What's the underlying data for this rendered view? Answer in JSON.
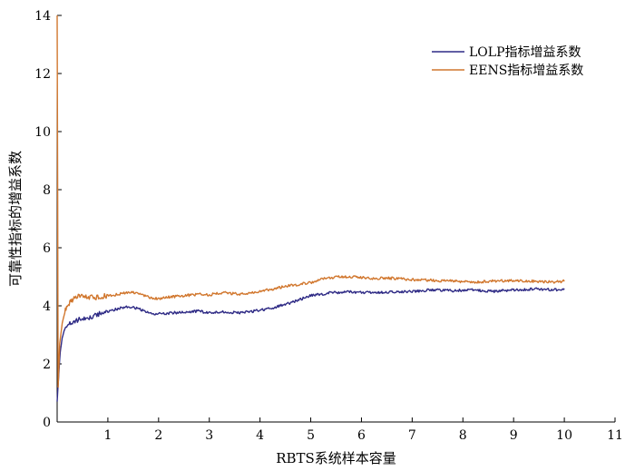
{
  "chart_data": {
    "type": "line",
    "xlabel": "RBTS系统样本容量",
    "ylabel": "可靠性指标的增益系数",
    "xlim": [
      0,
      11
    ],
    "ylim": [
      0,
      14
    ],
    "xticks": [
      1,
      2,
      3,
      4,
      5,
      6,
      7,
      8,
      9,
      10,
      11
    ],
    "yticks": [
      0,
      2,
      4,
      6,
      8,
      10,
      12,
      14
    ],
    "grid": false,
    "legend_position": "top-right",
    "series": [
      {
        "name": "LOLP指标增益系数",
        "color": "#2e2a85",
        "x": [
          0,
          0.03,
          0.06,
          0.1,
          0.15,
          0.2,
          0.3,
          0.4,
          0.5,
          0.6,
          0.7,
          0.8,
          0.9,
          1.0,
          1.2,
          1.4,
          1.6,
          1.8,
          2.0,
          2.2,
          2.5,
          2.8,
          3.0,
          3.3,
          3.6,
          4.0,
          4.3,
          4.6,
          5.0,
          5.4,
          5.8,
          6.2,
          6.6,
          7.0,
          7.4,
          7.8,
          8.2,
          8.6,
          9.0,
          9.4,
          9.8,
          10.0
        ],
        "y": [
          0.7,
          1.6,
          2.4,
          2.9,
          3.2,
          3.35,
          3.4,
          3.5,
          3.55,
          3.6,
          3.62,
          3.7,
          3.75,
          3.8,
          3.9,
          3.98,
          3.9,
          3.75,
          3.72,
          3.75,
          3.78,
          3.82,
          3.75,
          3.8,
          3.75,
          3.85,
          3.95,
          4.1,
          4.35,
          4.45,
          4.48,
          4.45,
          4.48,
          4.5,
          4.55,
          4.52,
          4.55,
          4.5,
          4.55,
          4.58,
          4.55,
          4.58
        ]
      },
      {
        "name": "EENS指标增益系数",
        "color": "#d1772e",
        "x": [
          0,
          0.02,
          0.05,
          0.1,
          0.15,
          0.2,
          0.25,
          0.3,
          0.4,
          0.5,
          0.6,
          0.7,
          0.8,
          0.9,
          1.0,
          1.2,
          1.4,
          1.6,
          1.8,
          2.0,
          2.2,
          2.5,
          2.8,
          3.0,
          3.3,
          3.6,
          4.0,
          4.3,
          4.6,
          5.0,
          5.3,
          5.6,
          5.9,
          6.2,
          6.6,
          7.0,
          7.4,
          7.8,
          8.2,
          8.6,
          9.0,
          9.4,
          9.8,
          10.0
        ],
        "y": [
          14.0,
          1.2,
          2.7,
          3.4,
          3.8,
          3.95,
          4.1,
          4.2,
          4.3,
          4.35,
          4.3,
          4.28,
          4.3,
          4.32,
          4.35,
          4.4,
          4.45,
          4.45,
          4.3,
          4.25,
          4.3,
          4.35,
          4.4,
          4.38,
          4.45,
          4.4,
          4.5,
          4.6,
          4.7,
          4.8,
          4.95,
          5.0,
          5.0,
          4.95,
          4.95,
          4.9,
          4.88,
          4.85,
          4.82,
          4.85,
          4.88,
          4.85,
          4.82,
          4.85
        ]
      }
    ]
  }
}
